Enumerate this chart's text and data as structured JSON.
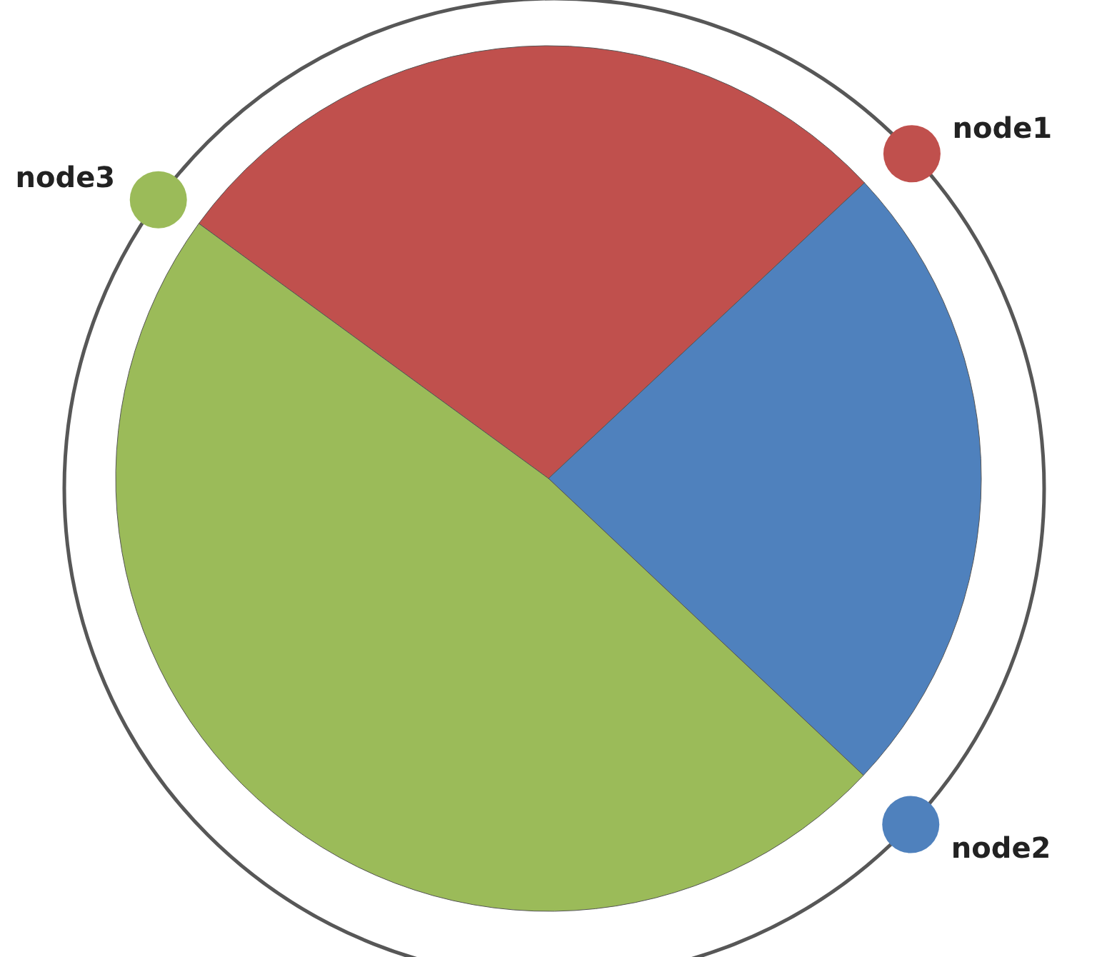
{
  "chart_data": {
    "type": "pie",
    "categories": [
      "node1",
      "node2",
      "node3"
    ],
    "values": [
      28,
      24,
      48
    ],
    "colors": [
      "#c0504d",
      "#4f81bd",
      "#9bbb59"
    ]
  }
}
